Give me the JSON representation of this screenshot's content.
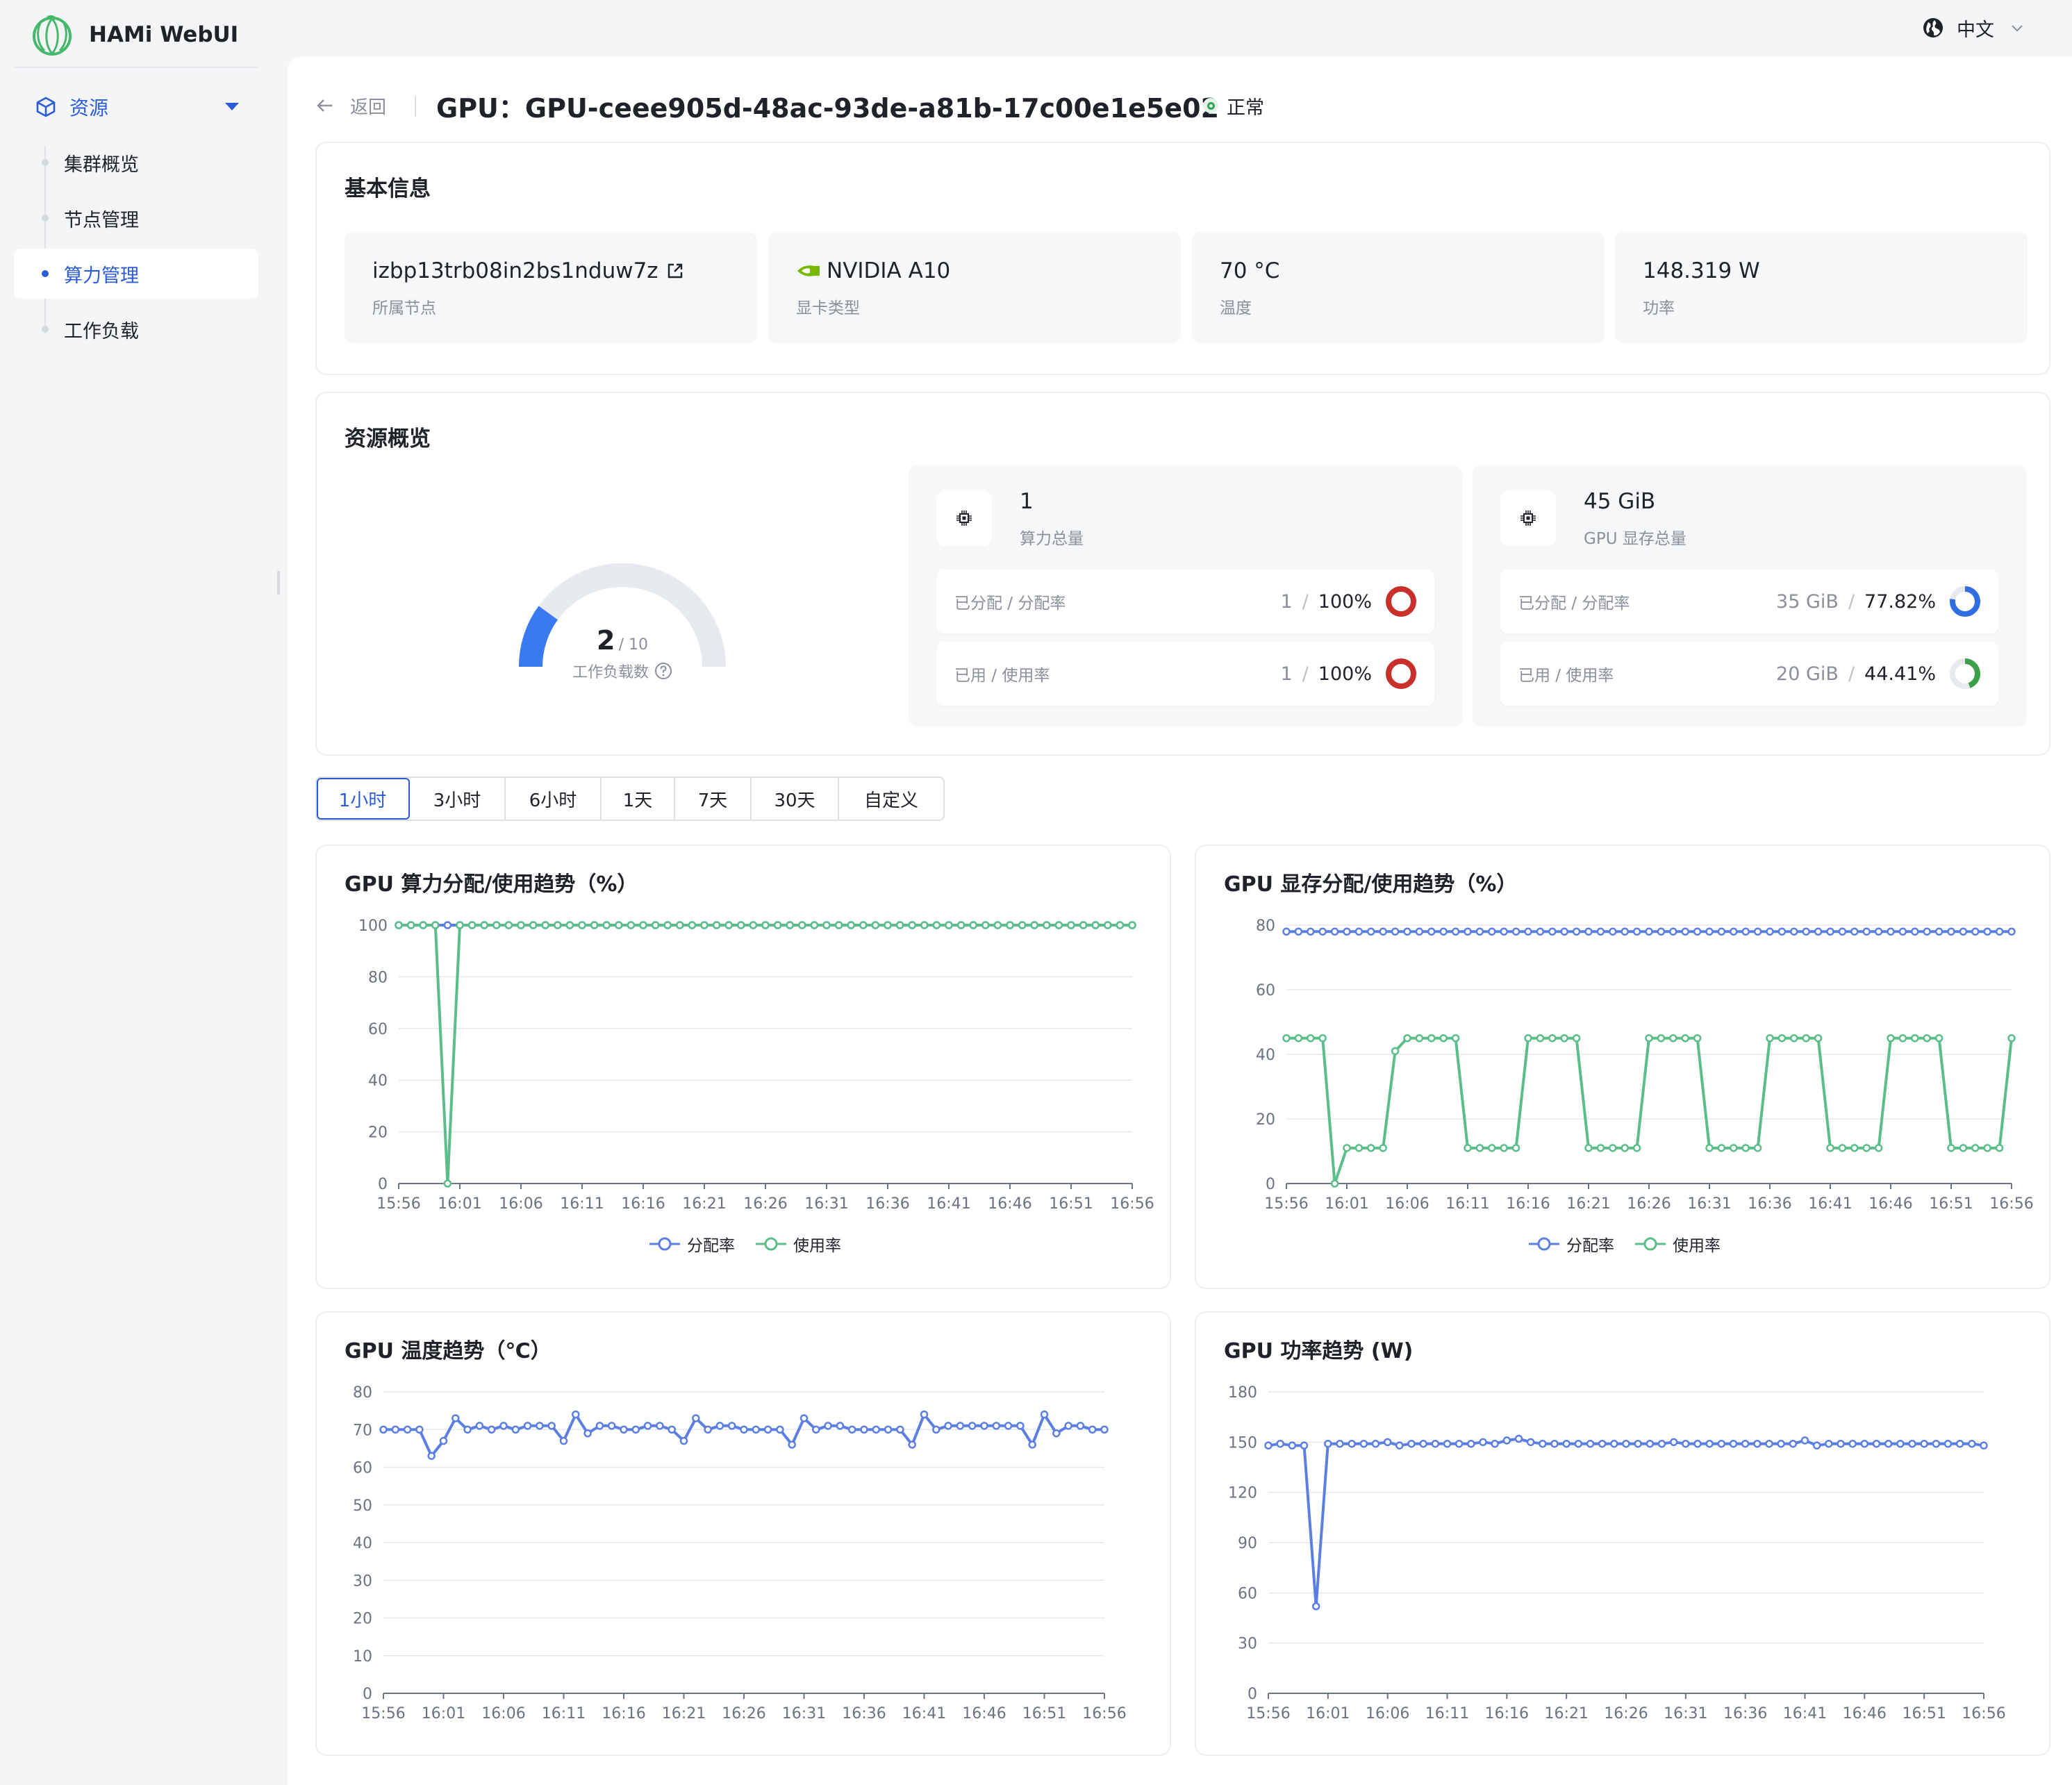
{
  "app": {
    "name": "HAMi WebUI"
  },
  "topbar": {
    "language": "中文"
  },
  "sidebar": {
    "group_label": "资源",
    "items": [
      {
        "label": "集群概览",
        "active": false
      },
      {
        "label": "节点管理",
        "active": false
      },
      {
        "label": "算力管理",
        "active": true
      },
      {
        "label": "工作负载",
        "active": false
      }
    ]
  },
  "header": {
    "back_label": "返回",
    "title": "GPU：GPU-ceee905d-48ac-93de-a81b-17c00e1e5e02",
    "status": "正常"
  },
  "basic_info": {
    "title": "基本信息",
    "tiles": [
      {
        "value": "izbp13trb08in2bs1nduw7z",
        "label": "所属节点"
      },
      {
        "value": "NVIDIA A10",
        "label": "显卡类型"
      },
      {
        "value": "70 °C",
        "label": "温度"
      },
      {
        "value": "148.319 W",
        "label": "功率"
      }
    ]
  },
  "resource_overview": {
    "title": "资源概览",
    "gauge": {
      "value": "2",
      "max": "/ 10",
      "label": "工作负载数",
      "fraction": 0.2
    },
    "compute": {
      "total_value": "1",
      "total_label": "算力总量",
      "allocated_label": "已分配 / 分配率",
      "allocated_value": "1",
      "allocated_rate": "100%",
      "allocated_fraction": 1.0,
      "used_label": "已用 / 使用率",
      "used_value": "1",
      "used_rate": "100%",
      "used_fraction": 1.0
    },
    "memory": {
      "total_value": "45 GiB",
      "total_label": "GPU 显存总量",
      "allocated_label": "已分配 / 分配率",
      "allocated_value": "35 GiB",
      "allocated_rate": "77.82%",
      "allocated_fraction": 0.7782,
      "used_label": "已用 / 使用率",
      "used_value": "20 GiB",
      "used_rate": "44.41%",
      "used_fraction": 0.4441
    },
    "separator": "/"
  },
  "time_tabs": [
    {
      "label": "1小时",
      "active": true
    },
    {
      "label": "3小时",
      "active": false
    },
    {
      "label": "6小时",
      "active": false
    },
    {
      "label": "1天",
      "active": false
    },
    {
      "label": "7天",
      "active": false
    },
    {
      "label": "30天",
      "active": false
    },
    {
      "label": "自定义",
      "active": false
    }
  ],
  "colors": {
    "accent": "#2b5bd7",
    "series_blue": "#5b7fe0",
    "series_green": "#5bbd8a",
    "ring_red": "#c9302c",
    "ring_blue": "#2f6de1",
    "ring_green": "#3aa14a",
    "gauge_blue": "#3a7af0",
    "gauge_track": "#e6e9ee"
  },
  "chart_data": [
    {
      "type": "line",
      "title": "GPU 算力分配/使用趋势（%）",
      "x_ticks": [
        "15:56",
        "16:01",
        "16:06",
        "16:11",
        "16:16",
        "16:21",
        "16:26",
        "16:31",
        "16:36",
        "16:41",
        "16:46",
        "16:51",
        "16:56"
      ],
      "ylim": [
        0,
        100
      ],
      "y_ticks": [
        0,
        20,
        40,
        60,
        80,
        100
      ],
      "grid": true,
      "legend": "bottom",
      "series": [
        {
          "name": "分配率",
          "color": "series_blue",
          "values": [
            100,
            100,
            100,
            100,
            100,
            100,
            100,
            100,
            100,
            100,
            100,
            100,
            100,
            100,
            100,
            100,
            100,
            100,
            100,
            100,
            100,
            100,
            100,
            100,
            100,
            100,
            100,
            100,
            100,
            100,
            100,
            100,
            100,
            100,
            100,
            100,
            100,
            100,
            100,
            100,
            100,
            100,
            100,
            100,
            100,
            100,
            100,
            100,
            100,
            100,
            100,
            100,
            100,
            100,
            100,
            100,
            100,
            100,
            100,
            100,
            100
          ]
        },
        {
          "name": "使用率",
          "color": "series_green",
          "values": [
            100,
            100,
            100,
            100,
            0,
            100,
            100,
            100,
            100,
            100,
            100,
            100,
            100,
            100,
            100,
            100,
            100,
            100,
            100,
            100,
            100,
            100,
            100,
            100,
            100,
            100,
            100,
            100,
            100,
            100,
            100,
            100,
            100,
            100,
            100,
            100,
            100,
            100,
            100,
            100,
            100,
            100,
            100,
            100,
            100,
            100,
            100,
            100,
            100,
            100,
            100,
            100,
            100,
            100,
            100,
            100,
            100,
            100,
            100,
            100,
            100
          ]
        }
      ]
    },
    {
      "type": "line",
      "title": "GPU 显存分配/使用趋势（%）",
      "x_ticks": [
        "15:56",
        "16:01",
        "16:06",
        "16:11",
        "16:16",
        "16:21",
        "16:26",
        "16:31",
        "16:36",
        "16:41",
        "16:46",
        "16:51",
        "16:56"
      ],
      "ylim": [
        0,
        80
      ],
      "y_ticks": [
        0,
        20,
        40,
        60,
        80
      ],
      "grid": true,
      "legend": "bottom",
      "series": [
        {
          "name": "分配率",
          "color": "series_blue",
          "values": [
            78,
            78,
            78,
            78,
            78,
            78,
            78,
            78,
            78,
            78,
            78,
            78,
            78,
            78,
            78,
            78,
            78,
            78,
            78,
            78,
            78,
            78,
            78,
            78,
            78,
            78,
            78,
            78,
            78,
            78,
            78,
            78,
            78,
            78,
            78,
            78,
            78,
            78,
            78,
            78,
            78,
            78,
            78,
            78,
            78,
            78,
            78,
            78,
            78,
            78,
            78,
            78,
            78,
            78,
            78,
            78,
            78,
            78,
            78,
            78,
            78
          ]
        },
        {
          "name": "使用率",
          "color": "series_green",
          "values": [
            45,
            45,
            45,
            45,
            0,
            11,
            11,
            11,
            11,
            41,
            45,
            45,
            45,
            45,
            45,
            11,
            11,
            11,
            11,
            11,
            45,
            45,
            45,
            45,
            45,
            11,
            11,
            11,
            11,
            11,
            45,
            45,
            45,
            45,
            45,
            11,
            11,
            11,
            11,
            11,
            45,
            45,
            45,
            45,
            45,
            11,
            11,
            11,
            11,
            11,
            45,
            45,
            45,
            45,
            45,
            11,
            11,
            11,
            11,
            11,
            45
          ]
        }
      ]
    },
    {
      "type": "line",
      "title": "GPU 温度趋势（℃）",
      "x_ticks": [
        "15:56",
        "16:01",
        "16:06",
        "16:11",
        "16:16",
        "16:21",
        "16:26",
        "16:31",
        "16:36",
        "16:41",
        "16:46",
        "16:51",
        "16:56"
      ],
      "ylim": [
        0,
        80
      ],
      "y_ticks": [
        0,
        10,
        20,
        30,
        40,
        50,
        60,
        70,
        80
      ],
      "grid": true,
      "series": [
        {
          "name": "",
          "color": "series_blue",
          "values": [
            70,
            70,
            70,
            70,
            63,
            67,
            73,
            70,
            71,
            70,
            71,
            70,
            71,
            71,
            71,
            67,
            74,
            69,
            71,
            71,
            70,
            70,
            71,
            71,
            70,
            67,
            73,
            70,
            71,
            71,
            70,
            70,
            70,
            70,
            66,
            73,
            70,
            71,
            71,
            70,
            70,
            70,
            70,
            70,
            66,
            74,
            70,
            71,
            71,
            71,
            71,
            71,
            71,
            71,
            66,
            74,
            69,
            71,
            71,
            70,
            70
          ]
        }
      ]
    },
    {
      "type": "line",
      "title": "GPU 功率趋势 (W)",
      "x_ticks": [
        "15:56",
        "16:01",
        "16:06",
        "16:11",
        "16:16",
        "16:21",
        "16:26",
        "16:31",
        "16:36",
        "16:41",
        "16:46",
        "16:51",
        "16:56"
      ],
      "ylim": [
        0,
        180
      ],
      "y_ticks": [
        0,
        30,
        60,
        90,
        120,
        150,
        180
      ],
      "grid": true,
      "series": [
        {
          "name": "",
          "color": "series_blue",
          "values": [
            148,
            149,
            148,
            148,
            52,
            149,
            149,
            149,
            149,
            149,
            150,
            148,
            149,
            149,
            149,
            149,
            149,
            149,
            150,
            149,
            151,
            152,
            150,
            149,
            149,
            149,
            149,
            149,
            149,
            149,
            149,
            149,
            149,
            149,
            150,
            149,
            149,
            149,
            149,
            149,
            149,
            149,
            149,
            149,
            149,
            151,
            148,
            149,
            149,
            149,
            149,
            149,
            149,
            149,
            149,
            149,
            149,
            149,
            149,
            149,
            148
          ]
        }
      ]
    }
  ]
}
